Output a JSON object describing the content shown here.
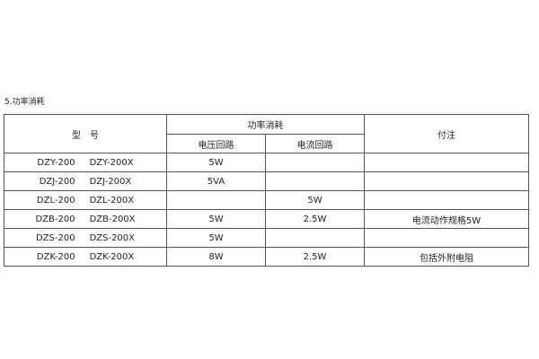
{
  "title": "5.功率消耗",
  "table": {
    "header": {
      "model": "型　号",
      "power": "功率消耗",
      "voltage_circuit": "电压回路",
      "current_circuit": "电流回路",
      "note": "付注"
    },
    "rows": [
      {
        "model_a": "DZY-200",
        "model_b": "DZY-200X",
        "voltage": "5W",
        "current": "",
        "note": ""
      },
      {
        "model_a": "DZJ-200",
        "model_b": "DZJ-200X",
        "voltage": "5VA",
        "current": "",
        "note": ""
      },
      {
        "model_a": "DZL-200",
        "model_b": "DZL-200X",
        "voltage": "",
        "current": "5W",
        "note": ""
      },
      {
        "model_a": "DZB-200",
        "model_b": "DZB-200X",
        "voltage": "5W",
        "current": "2.5W",
        "note": "电流动作规格5W"
      },
      {
        "model_a": "DZS-200",
        "model_b": "DZS-200X",
        "voltage": "5W",
        "current": "",
        "note": ""
      },
      {
        "model_a": "DZK-200",
        "model_b": "DZK-200X",
        "voltage": "8W",
        "current": "2.5W",
        "note": "包括外附电阻"
      }
    ]
  }
}
